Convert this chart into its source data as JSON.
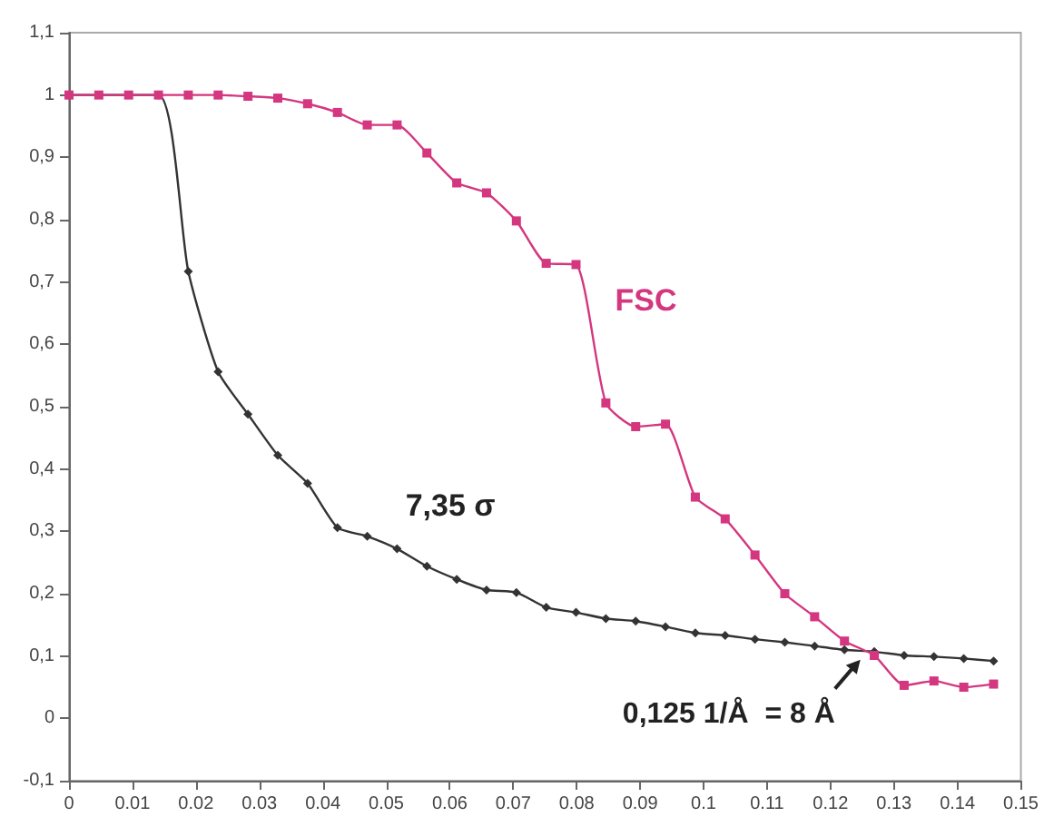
{
  "chart_data": {
    "type": "line",
    "x": [
      0,
      0.0047,
      0.0094,
      0.0141,
      0.0188,
      0.0235,
      0.0282,
      0.0329,
      0.0376,
      0.0423,
      0.047,
      0.0517,
      0.0564,
      0.0611,
      0.0658,
      0.0705,
      0.0752,
      0.0799,
      0.0846,
      0.0893,
      0.094,
      0.0987,
      0.1034,
      0.1081,
      0.1128,
      0.1175,
      0.1222,
      0.1269,
      0.1316,
      0.1363,
      0.141,
      0.1457
    ],
    "series": [
      {
        "name": "FSC",
        "color": "#d4367f",
        "marker": "square",
        "values": [
          1,
          1,
          1,
          1,
          1,
          1,
          0.998,
          0.995,
          0.986,
          0.972,
          0.952,
          0.952,
          0.907,
          0.859,
          0.843,
          0.798,
          0.73,
          0.728,
          0.506,
          0.468,
          0.472,
          0.355,
          0.32,
          0.262,
          0.2,
          0.163,
          0.124,
          0.101,
          0.053,
          0.06,
          0.05,
          0.055
        ]
      },
      {
        "name": "7,35 σ",
        "color": "#333333",
        "marker": "diamond",
        "values": [
          1,
          null,
          null,
          1,
          0.717,
          0.556,
          0.488,
          0.422,
          0.377,
          0.306,
          0.292,
          0.272,
          0.244,
          0.223,
          0.206,
          0.202,
          0.178,
          0.17,
          0.16,
          0.156,
          0.147,
          0.137,
          0.133,
          0.127,
          0.122,
          0.116,
          0.11,
          0.107,
          0.101,
          0.099,
          0.096,
          0.092
        ]
      }
    ],
    "xlim": [
      0,
      0.15
    ],
    "xticks": [
      0,
      0.01,
      0.02,
      0.03,
      0.04,
      0.05,
      0.06,
      0.07,
      0.08,
      0.09,
      0.1,
      0.11,
      0.12,
      0.13,
      0.14,
      0.15
    ],
    "ylim": [
      -0.1,
      1.1
    ],
    "yticks": [
      {
        "value": -0.1,
        "label": "-0,1"
      },
      0,
      {
        "value": 0.1,
        "label": "0,1"
      },
      {
        "value": 0.2,
        "label": "0,2"
      },
      {
        "value": 0.3,
        "label": "0,3"
      },
      {
        "value": 0.4,
        "label": "0,4"
      },
      {
        "value": 0.5,
        "label": "0,5"
      },
      {
        "value": 0.6,
        "label": "0,6"
      },
      {
        "value": 0.7,
        "label": "0,7"
      },
      {
        "value": 0.8,
        "label": "0,8"
      },
      {
        "value": 0.9,
        "label": "0,9"
      },
      1,
      {
        "value": 1.1,
        "label": "1,1"
      }
    ],
    "annotations": [
      {
        "text": "0,125 1/Å  = 8 Å",
        "x": 0.125,
        "y": 0.1
      }
    ],
    "grid": false,
    "legend": false
  }
}
